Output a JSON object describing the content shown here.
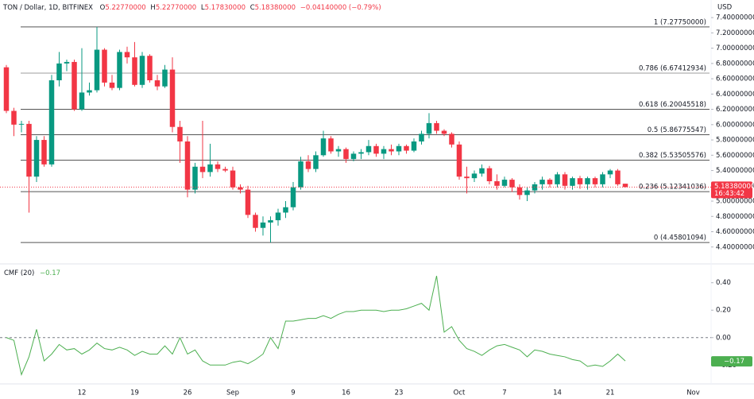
{
  "header": {
    "symbol": "TON / Dollar, 1D, BITFINEX",
    "o_key": "O",
    "o": "5.22770000",
    "h_key": "H",
    "h": "5.22770000",
    "l_key": "L",
    "l": "5.17830000",
    "c_key": "C",
    "c": "5.18380000",
    "change": "−0.04140000 (−0.79%)"
  },
  "chart_data": [
    {
      "type": "candlestick",
      "currency": "USD",
      "categories": [
        null,
        null,
        null,
        null,
        null,
        null,
        null,
        null,
        null,
        null,
        "12",
        null,
        null,
        null,
        null,
        null,
        null,
        "19",
        null,
        null,
        null,
        null,
        null,
        null,
        "26",
        null,
        null,
        null,
        null,
        null,
        "Sep",
        null,
        null,
        null,
        null,
        null,
        null,
        null,
        "9",
        null,
        null,
        null,
        null,
        null,
        null,
        "16",
        null,
        null,
        null,
        null,
        null,
        null,
        "23",
        null,
        null,
        null,
        null,
        null,
        null,
        null,
        "Oct",
        null,
        null,
        null,
        null,
        null,
        "7",
        null,
        null,
        null,
        null,
        null,
        null,
        "14",
        null,
        null,
        null,
        null,
        null,
        null,
        "21",
        null,
        null,
        null,
        null,
        null,
        null,
        null,
        null,
        null,
        null,
        "Nov"
      ],
      "open": [
        6.75,
        6.18,
        6.0,
        6.01,
        5.32,
        5.8,
        5.48,
        6.58,
        6.8,
        6.82,
        6.2,
        6.42,
        6.45,
        6.98,
        6.55,
        6.48,
        6.95,
        6.88,
        6.52,
        6.9,
        6.58,
        6.5,
        6.72,
        5.97,
        5.78,
        5.15,
        5.45,
        5.38,
        5.48,
        5.42,
        5.4,
        5.18,
        5.15,
        4.82,
        4.65,
        4.72,
        4.75,
        4.85,
        4.92,
        5.18,
        5.52,
        5.42,
        5.6,
        5.82,
        5.65,
        5.68,
        5.55,
        5.62,
        5.64,
        5.72,
        5.62,
        5.68,
        5.65,
        5.72,
        5.66,
        5.78,
        5.88,
        6.02,
        5.92,
        5.88,
        5.74,
        5.32,
        5.3,
        5.36,
        5.43,
        5.26,
        5.2,
        5.28,
        5.18,
        5.08,
        5.14,
        5.22,
        5.28,
        5.22,
        5.35,
        5.2,
        5.3,
        5.22,
        5.3,
        5.22,
        5.35,
        5.4,
        5.2277,
        null,
        null,
        null,
        null,
        null,
        null,
        null,
        null,
        null
      ],
      "high": [
        6.78,
        6.22,
        6.05,
        6.05,
        5.85,
        5.85,
        6.65,
        6.95,
        6.85,
        6.85,
        7.0,
        6.55,
        7.2775,
        7.0,
        6.65,
        6.98,
        7.02,
        7.08,
        6.95,
        6.92,
        6.65,
        6.78,
        6.88,
        6.05,
        5.85,
        5.5,
        6.05,
        5.75,
        5.52,
        5.45,
        5.45,
        5.22,
        5.2,
        4.85,
        4.8,
        4.8,
        4.9,
        5.0,
        5.25,
        5.58,
        5.6,
        5.65,
        5.92,
        5.85,
        5.72,
        5.7,
        5.65,
        5.68,
        5.8,
        5.75,
        5.72,
        5.74,
        5.75,
        5.74,
        5.82,
        5.92,
        6.15,
        6.05,
        5.94,
        5.9,
        5.78,
        5.45,
        5.4,
        5.48,
        5.46,
        5.35,
        5.32,
        5.3,
        5.22,
        5.18,
        5.25,
        5.32,
        5.3,
        5.38,
        5.38,
        5.32,
        5.33,
        5.32,
        5.32,
        5.38,
        5.42,
        5.42,
        5.2277,
        null,
        null,
        null,
        null,
        null,
        null,
        null,
        null,
        null
      ],
      "low": [
        6.15,
        5.85,
        5.9,
        4.85,
        5.25,
        5.45,
        5.45,
        6.5,
        6.7,
        6.18,
        6.18,
        6.38,
        6.42,
        6.5,
        6.45,
        6.45,
        6.8,
        6.5,
        6.48,
        6.55,
        6.45,
        6.48,
        5.9,
        5.5,
        5.05,
        5.1,
        5.3,
        5.32,
        5.38,
        5.38,
        5.15,
        5.1,
        4.78,
        4.6,
        4.55,
        4.45801094,
        4.68,
        4.78,
        4.88,
        5.15,
        5.38,
        5.38,
        5.58,
        5.62,
        5.58,
        5.5,
        5.52,
        5.55,
        5.6,
        5.58,
        5.55,
        5.6,
        5.6,
        5.62,
        5.64,
        5.74,
        5.82,
        5.88,
        5.85,
        5.7,
        5.28,
        5.1,
        5.25,
        5.32,
        5.22,
        5.15,
        5.18,
        5.12,
        5.02,
        5.0,
        5.1,
        5.15,
        5.18,
        5.18,
        5.15,
        5.15,
        5.16,
        5.15,
        5.18,
        5.18,
        5.3,
        5.2,
        5.1783,
        null,
        null,
        null,
        null,
        null,
        null,
        null,
        null,
        null
      ],
      "close": [
        6.18,
        6.0,
        6.01,
        5.32,
        5.8,
        5.48,
        6.58,
        6.8,
        6.82,
        6.2,
        6.42,
        6.45,
        6.98,
        6.55,
        6.48,
        6.95,
        6.88,
        6.52,
        6.9,
        6.58,
        6.5,
        6.72,
        5.97,
        5.78,
        5.15,
        5.45,
        5.38,
        5.48,
        5.42,
        5.4,
        5.18,
        5.15,
        4.82,
        4.65,
        4.72,
        4.75,
        4.85,
        4.92,
        5.18,
        5.52,
        5.42,
        5.6,
        5.82,
        5.65,
        5.68,
        5.55,
        5.62,
        5.64,
        5.72,
        5.62,
        5.68,
        5.65,
        5.72,
        5.66,
        5.78,
        5.88,
        6.02,
        5.92,
        5.88,
        5.74,
        5.32,
        5.3,
        5.36,
        5.43,
        5.26,
        5.2,
        5.28,
        5.18,
        5.08,
        5.14,
        5.22,
        5.28,
        5.22,
        5.35,
        5.2,
        5.3,
        5.22,
        5.3,
        5.22,
        5.35,
        5.4,
        5.22,
        5.1838,
        null,
        null,
        null,
        null,
        null,
        null,
        null,
        null,
        null
      ],
      "up_color": "#089981",
      "down_color": "#f23645",
      "ylim": [
        4.2,
        7.63
      ],
      "yticks": [
        {
          "value": 4.4,
          "label": "4.40000000"
        },
        {
          "value": 4.6,
          "label": "4.60000000"
        },
        {
          "value": 4.8,
          "label": "4.80000000"
        },
        {
          "value": 5.0,
          "label": "5.00000000"
        },
        {
          "value": 5.2,
          "label": "5.20000000"
        },
        {
          "value": 5.4,
          "label": "5.40000000"
        },
        {
          "value": 5.6,
          "label": "5.60000000"
        },
        {
          "value": 5.8,
          "label": "5.80000000"
        },
        {
          "value": 6.0,
          "label": "6.00000000"
        },
        {
          "value": 6.2,
          "label": "6.20000000"
        },
        {
          "value": 6.4,
          "label": "6.40000000"
        },
        {
          "value": 6.6,
          "label": "6.60000000"
        },
        {
          "value": 6.8,
          "label": "6.80000000"
        },
        {
          "value": 7.0,
          "label": "7.00000000"
        },
        {
          "value": 7.2,
          "label": "7.20000000"
        },
        {
          "value": 7.4,
          "label": "7.40000000"
        }
      ],
      "fib_levels": [
        {
          "value": 7.2775,
          "label": "1 (7.27750000)",
          "color": "#555555"
        },
        {
          "value": 6.67412934,
          "label": "0.786 (6.67412934)",
          "color": "#9e9e9e"
        },
        {
          "value": 6.20045518,
          "label": "0.618 (6.20045518)",
          "color": "#555555"
        },
        {
          "value": 5.86775547,
          "label": "0.5 (5.86775547)",
          "color": "#555555"
        },
        {
          "value": 5.53505576,
          "label": "0.382 (5.53505576)",
          "color": "#555555"
        },
        {
          "value": 5.12341036,
          "label": "0.236 (5.12341036)",
          "color": "#555555"
        },
        {
          "value": 4.45801094,
          "label": "0 (4.45801094)",
          "color": "#555555"
        }
      ],
      "last_price": {
        "value": 5.1838,
        "label": "5.18380000"
      },
      "countdown": "16:43:42"
    },
    {
      "type": "line",
      "title": "CMF (20)",
      "last_value_label": "−0.17",
      "color": "#4caf50",
      "values": [
        0.0,
        -0.02,
        -0.27,
        -0.14,
        0.06,
        -0.17,
        -0.12,
        -0.05,
        -0.09,
        -0.08,
        -0.12,
        -0.09,
        -0.04,
        -0.08,
        -0.09,
        -0.07,
        -0.09,
        -0.13,
        -0.1,
        -0.12,
        -0.12,
        -0.06,
        -0.12,
        0.0,
        -0.12,
        -0.09,
        -0.17,
        -0.2,
        -0.2,
        -0.2,
        -0.18,
        -0.17,
        -0.19,
        -0.16,
        -0.12,
        0.0,
        -0.08,
        0.12,
        0.12,
        0.13,
        0.14,
        0.14,
        0.16,
        0.14,
        0.17,
        0.19,
        0.19,
        0.2,
        0.2,
        0.2,
        0.19,
        0.2,
        0.2,
        0.21,
        0.23,
        0.25,
        0.2,
        0.45,
        0.04,
        0.08,
        -0.02,
        -0.08,
        -0.1,
        -0.13,
        -0.09,
        -0.06,
        -0.05,
        -0.07,
        -0.09,
        -0.14,
        -0.09,
        -0.1,
        -0.12,
        -0.13,
        -0.14,
        -0.16,
        -0.17,
        -0.21,
        -0.2,
        -0.21,
        -0.17,
        -0.12,
        -0.17,
        null,
        null,
        null,
        null,
        null,
        null,
        null,
        null,
        null
      ],
      "ylim": [
        -0.32,
        0.52
      ],
      "yticks": [
        {
          "value": -0.2,
          "label": "−0.20"
        },
        {
          "value": 0,
          "label": "0.00"
        },
        {
          "value": 0.2,
          "label": "0.20"
        },
        {
          "value": 0.4,
          "label": "0.40"
        }
      ],
      "zero_line": true
    }
  ]
}
